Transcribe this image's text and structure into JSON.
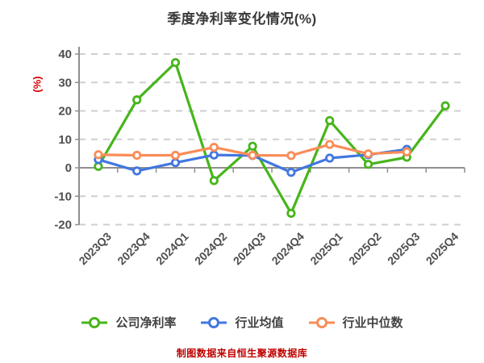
{
  "footer": "制图数据来自恒生聚源数据库",
  "colors": {
    "company_line": "#47b51b",
    "industry_avg_line": "#4277e0",
    "industry_median_line": "#f98d58",
    "grid_line": "#cfcfcf",
    "axis_line": "#8f8f8f",
    "tick_label": "#4f4f4f",
    "title_text": "#3a3a3a",
    "accent_red": "#d40000",
    "footer_red": "#c00000",
    "marker_fill": "#ffffff"
  },
  "chart_data": {
    "type": "line",
    "title": "季度净利率变化情况(%)",
    "ylabel": "(%)",
    "xlabel": "",
    "ylim": [
      -20,
      40
    ],
    "yticks": [
      40,
      30,
      20,
      10,
      0,
      -10,
      -20
    ],
    "grid": "horizontal-dashed",
    "legend_position": "bottom",
    "categories": [
      "2023Q3",
      "2023Q4",
      "2024Q1",
      "2024Q2",
      "2024Q3",
      "2024Q4",
      "2025Q1",
      "2025Q2",
      "2025Q3",
      "2025Q4"
    ],
    "series": [
      {
        "name": "公司净利率",
        "color": "#47b51b",
        "values": [
          0.5,
          23.9,
          37.0,
          -4.5,
          7.6,
          -16.0,
          16.6,
          1.2,
          3.7,
          21.8
        ]
      },
      {
        "name": "行业均值",
        "color": "#4277e0",
        "values": [
          2.9,
          -1.1,
          1.8,
          4.5,
          4.3,
          -1.6,
          3.4,
          4.6,
          6.5,
          null
        ]
      },
      {
        "name": "行业中位数",
        "color": "#f98d58",
        "values": [
          4.6,
          4.4,
          4.4,
          7.2,
          4.4,
          4.3,
          8.2,
          4.9,
          5.6,
          null
        ]
      }
    ]
  }
}
